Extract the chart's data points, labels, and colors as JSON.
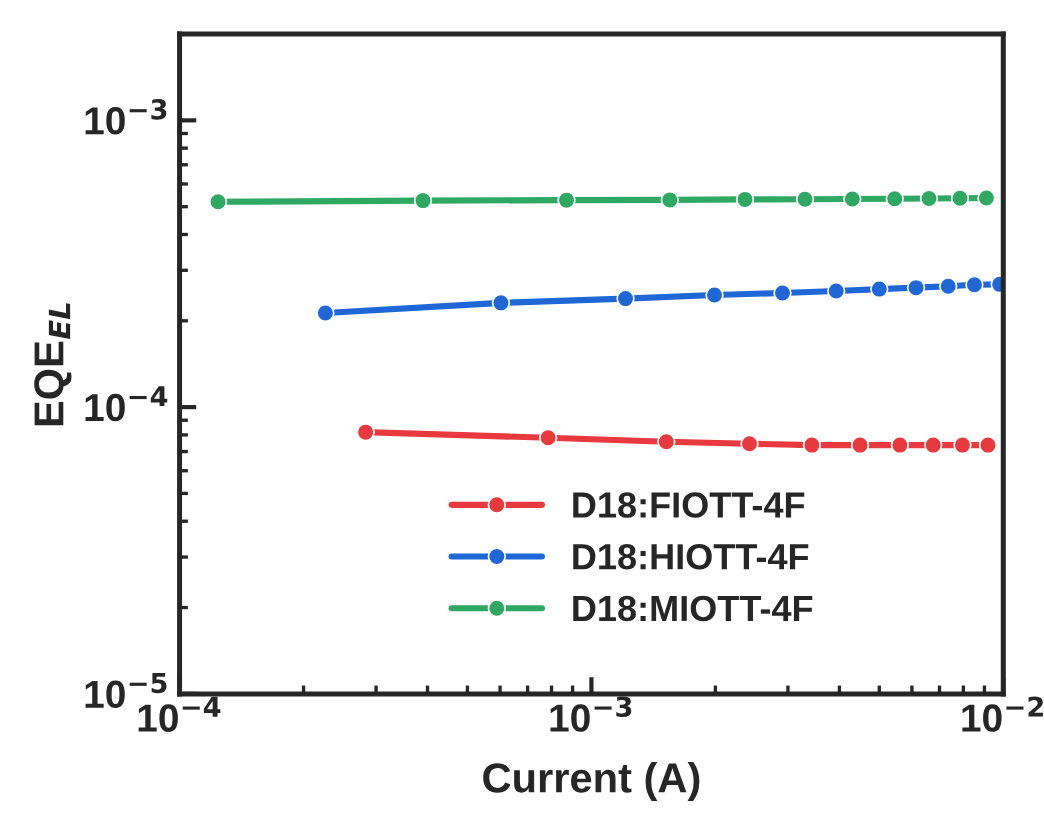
{
  "chart_data": {
    "type": "line",
    "xlabel": "Current (A)",
    "ylabel": "EQE$_{EL}$",
    "log": "xy",
    "marker": "circle",
    "line_style": "solid",
    "grid": false,
    "legend": "bottom",
    "xlim": [
      0.0001,
      0.01
    ],
    "ylim": [
      1e-05,
      0.002
    ],
    "xticks": [
      {
        "value": 0.0001,
        "label": "10$^{−4}$"
      },
      {
        "value": 0.001,
        "label": "10$^{−3}$"
      },
      {
        "value": 0.01,
        "label": "10$^{−2}$"
      }
    ],
    "yticks": [
      {
        "value": 1e-05,
        "label": "10$^{−5}$"
      },
      {
        "value": 0.0001,
        "label": "10$^{−4}$"
      },
      {
        "value": 0.001,
        "label": "10$^{−3}$"
      }
    ],
    "series": [
      {
        "name": "D18:FIOTT-4F",
        "color": "#e8393e",
        "x": [
          0.000283,
          0.000785,
          0.00152,
          0.00242,
          0.00343,
          0.00449,
          0.00561,
          0.00676,
          0.00796,
          0.00918
        ],
        "values": [
          8.18e-05,
          7.82e-05,
          7.57e-05,
          7.45e-05,
          7.37e-05,
          7.37e-05,
          7.37e-05,
          7.37e-05,
          7.37e-05,
          7.37e-05
        ]
      },
      {
        "name": "D18:HIOTT-4F",
        "color": "#1f67d6",
        "x": [
          0.000226,
          0.000603,
          0.00121,
          0.00199,
          0.00291,
          0.00393,
          0.005,
          0.00614,
          0.00735,
          0.00851,
          0.0098
        ],
        "values": [
          0.000213,
          0.000231,
          0.000239,
          0.000246,
          0.00025,
          0.000254,
          0.000258,
          0.000261,
          0.000264,
          0.000267,
          0.000268
        ]
      },
      {
        "name": "D18:MIOTT-4F",
        "color": "#2fa862",
        "x": [
          0.000124,
          0.00039,
          0.00087,
          0.00155,
          0.00236,
          0.0033,
          0.0043,
          0.00545,
          0.0066,
          0.00785,
          0.0091
        ],
        "values": [
          0.00052,
          0.000525,
          0.000527,
          0.000528,
          0.00053,
          0.000531,
          0.000532,
          0.000533,
          0.000534,
          0.000535,
          0.000536
        ]
      }
    ]
  }
}
